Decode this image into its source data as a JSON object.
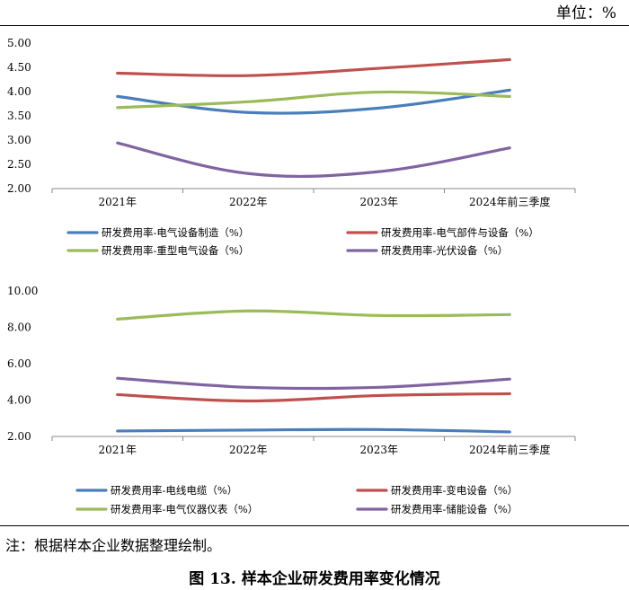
{
  "unit_label": "单位：%",
  "note": "注：根据样本企业数据整理绘制。",
  "caption": "图 13.  样本企业研发费用率变化情况",
  "chart_data": [
    {
      "type": "line",
      "categories": [
        "2021年",
        "2022年",
        "2023年",
        "2024年前三季度"
      ],
      "ylim": [
        2.0,
        5.0
      ],
      "yticks": [
        "2.00",
        "2.50",
        "3.00",
        "3.50",
        "4.00",
        "4.50",
        "5.00"
      ],
      "grid": false,
      "legend": "bottom",
      "series": [
        {
          "name": "研发费用率-电气设备制造（%）",
          "color": "#4a7ebb",
          "values": [
            3.9,
            3.57,
            3.66,
            4.03
          ]
        },
        {
          "name": "研发费用率-电气部件与设备（%）",
          "color": "#c0504d",
          "values": [
            4.38,
            4.33,
            4.48,
            4.66
          ]
        },
        {
          "name": "研发费用率-重型电气设备（%）",
          "color": "#9bbb59",
          "values": [
            3.67,
            3.79,
            3.99,
            3.9
          ]
        },
        {
          "name": "研发费用率-光伏设备（%）",
          "color": "#8064a2",
          "values": [
            2.94,
            2.31,
            2.35,
            2.84
          ]
        }
      ]
    },
    {
      "type": "line",
      "categories": [
        "2021年",
        "2022年",
        "2023年",
        "2024年前三季度"
      ],
      "ylim": [
        2.0,
        10.0
      ],
      "yticks": [
        "2.00",
        "4.00",
        "6.00",
        "8.00",
        "10.00"
      ],
      "grid": false,
      "legend": "bottom",
      "series": [
        {
          "name": "研发费用率-电线电缆（%）",
          "color": "#4a7ebb",
          "values": [
            2.3,
            2.35,
            2.38,
            2.25
          ]
        },
        {
          "name": "研发费用率-变电设备（%）",
          "color": "#c0504d",
          "values": [
            4.3,
            3.95,
            4.25,
            4.35
          ]
        },
        {
          "name": "研发费用率-电气仪器仪表（%）",
          "color": "#9bbb59",
          "values": [
            8.45,
            8.9,
            8.65,
            8.7
          ]
        },
        {
          "name": "研发费用率-储能设备（%）",
          "color": "#8064a2",
          "values": [
            5.2,
            4.7,
            4.7,
            5.15
          ]
        }
      ]
    }
  ]
}
